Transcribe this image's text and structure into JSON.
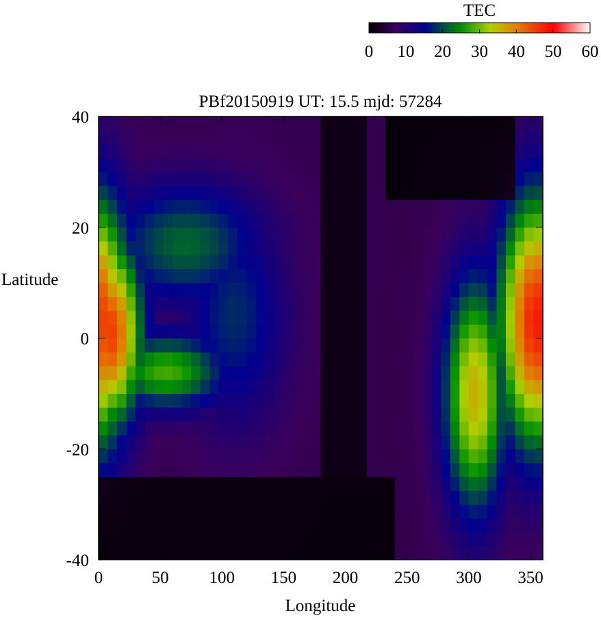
{
  "chart_data": {
    "type": "heatmap",
    "title": "PBf20150919  UT: 15.5  mjd: 57284",
    "xlabel": "Longitude",
    "ylabel": "Latitude",
    "xlim": [
      0,
      360
    ],
    "ylim": [
      -40,
      40
    ],
    "x_ticks": [
      0,
      50,
      100,
      150,
      200,
      250,
      300,
      350
    ],
    "y_ticks": [
      -40,
      -20,
      0,
      20,
      40
    ],
    "grid": false,
    "colorbar": {
      "label": "TEC",
      "range": [
        0,
        60
      ],
      "ticks": [
        0,
        10,
        20,
        30,
        40,
        50,
        60
      ],
      "placement": "top-right",
      "stops": [
        {
          "value": 0,
          "color": "#000000"
        },
        {
          "value": 7,
          "color": "#3a005a"
        },
        {
          "value": 15,
          "color": "#000090"
        },
        {
          "value": 25,
          "color": "#009000"
        },
        {
          "value": 33,
          "color": "#b0d000"
        },
        {
          "value": 40,
          "color": "#e08000"
        },
        {
          "value": 50,
          "color": "#ff0000"
        },
        {
          "value": 60,
          "color": "#ffffff"
        }
      ]
    },
    "grid_resolution": {
      "lon_step": 7.5,
      "lat_step": 2.5
    },
    "features": [
      {
        "name": "western crest",
        "lon_center": 10,
        "lon_width": 18,
        "lat_center": 1,
        "lat_width": 12,
        "tec": 45
      },
      {
        "name": "southern arm",
        "lon_center": 55,
        "lon_width": 35,
        "lat_center": -6,
        "lat_width": 5,
        "tec": 28
      },
      {
        "name": "northern arm",
        "lon_center": 70,
        "lon_width": 45,
        "lat_center": 17,
        "lat_width": 8,
        "tec": 22
      },
      {
        "name": "arc ring",
        "lon_center": 110,
        "lon_width": 30,
        "lat_center": 4,
        "lat_width": 14,
        "tec": 18
      },
      {
        "name": "eastern crest",
        "lon_center": 355,
        "lon_width": 22,
        "lat_center": 3,
        "lat_width": 16,
        "tec": 48
      },
      {
        "name": "southeastern band",
        "lon_center": 305,
        "lon_width": 18,
        "lat_center": -10,
        "lat_width": 15,
        "tec": 36
      },
      {
        "name": "background",
        "tec": 6
      }
    ],
    "low_tec_regions": [
      {
        "name": "northern dark zone",
        "lon_range": [
          230,
          340
        ],
        "lat_min": 26,
        "tec": 0
      },
      {
        "name": "southern dark zone",
        "lon_range": [
          0,
          240
        ],
        "lat_max": -25,
        "tec": 0
      },
      {
        "name": "central dark zone",
        "lon_range": [
          180,
          215
        ],
        "lat_range": [
          -40,
          40
        ],
        "tec": 1
      }
    ]
  }
}
